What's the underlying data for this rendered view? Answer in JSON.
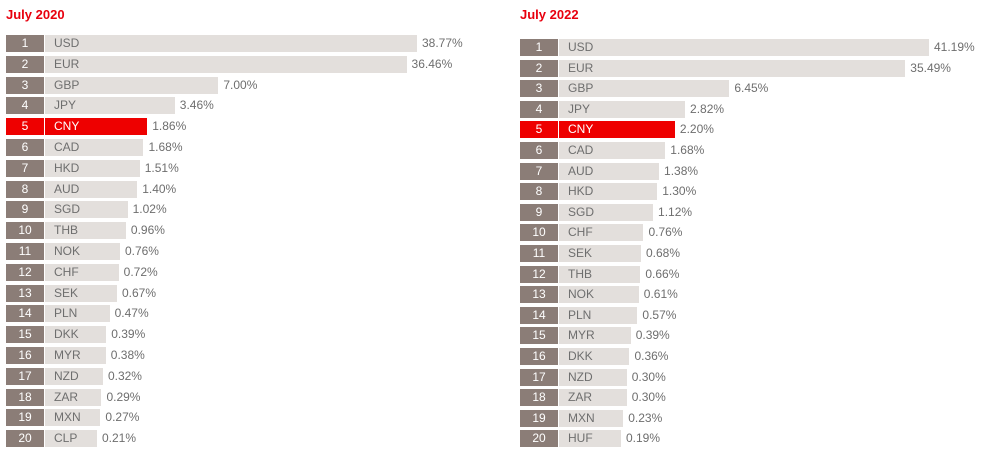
{
  "accent_color": "#ee0000",
  "chart_data": [
    {
      "type": "bar",
      "orientation": "horizontal",
      "title": "July 2020",
      "xlim": [
        0,
        42
      ],
      "highlight": "CNY",
      "ranks": [
        "1",
        "2",
        "3",
        "4",
        "5",
        "6",
        "7",
        "8",
        "9",
        "10",
        "11",
        "12",
        "13",
        "14",
        "15",
        "16",
        "17",
        "18",
        "19",
        "20"
      ],
      "categories": [
        "USD",
        "EUR",
        "GBP",
        "JPY",
        "CNY",
        "CAD",
        "HKD",
        "AUD",
        "SGD",
        "THB",
        "NOK",
        "CHF",
        "SEK",
        "PLN",
        "DKK",
        "MYR",
        "NZD",
        "ZAR",
        "MXN",
        "CLP"
      ],
      "values": [
        38.77,
        36.46,
        7.0,
        3.46,
        1.86,
        1.68,
        1.51,
        1.4,
        1.02,
        0.96,
        0.76,
        0.72,
        0.67,
        0.47,
        0.39,
        0.38,
        0.32,
        0.29,
        0.27,
        0.21
      ],
      "value_labels": [
        "38.77%",
        "36.46%",
        "7.00%",
        "3.46%",
        "1.86%",
        "1.68%",
        "1.51%",
        "1.40%",
        "1.02%",
        "0.96%",
        "0.76%",
        "0.72%",
        "0.67%",
        "0.47%",
        "0.39%",
        "0.38%",
        "0.32%",
        "0.29%",
        "0.27%",
        "0.21%"
      ]
    },
    {
      "type": "bar",
      "orientation": "horizontal",
      "title": "July 2022",
      "xlim": [
        0,
        42
      ],
      "highlight": "CNY",
      "ranks": [
        "1",
        "2",
        "3",
        "4",
        "5",
        "6",
        "7",
        "8",
        "9",
        "10",
        "11",
        "12",
        "13",
        "14",
        "15",
        "16",
        "17",
        "18",
        "19",
        "20"
      ],
      "categories": [
        "USD",
        "EUR",
        "GBP",
        "JPY",
        "CNY",
        "CAD",
        "AUD",
        "HKD",
        "SGD",
        "CHF",
        "SEK",
        "THB",
        "NOK",
        "PLN",
        "MYR",
        "DKK",
        "NZD",
        "ZAR",
        "MXN",
        "HUF"
      ],
      "values": [
        41.19,
        35.49,
        6.45,
        2.82,
        2.2,
        1.68,
        1.38,
        1.3,
        1.12,
        0.76,
        0.68,
        0.66,
        0.61,
        0.57,
        0.39,
        0.36,
        0.3,
        0.3,
        0.23,
        0.19
      ],
      "value_labels": [
        "41.19%",
        "35.49%",
        "6.45%",
        "2.82%",
        "2.20%",
        "1.68%",
        "1.38%",
        "1.30%",
        "1.12%",
        "0.76%",
        "0.68%",
        "0.66%",
        "0.61%",
        "0.57%",
        "0.39%",
        "0.36%",
        "0.30%",
        "0.30%",
        "0.23%",
        "0.19%"
      ]
    }
  ]
}
